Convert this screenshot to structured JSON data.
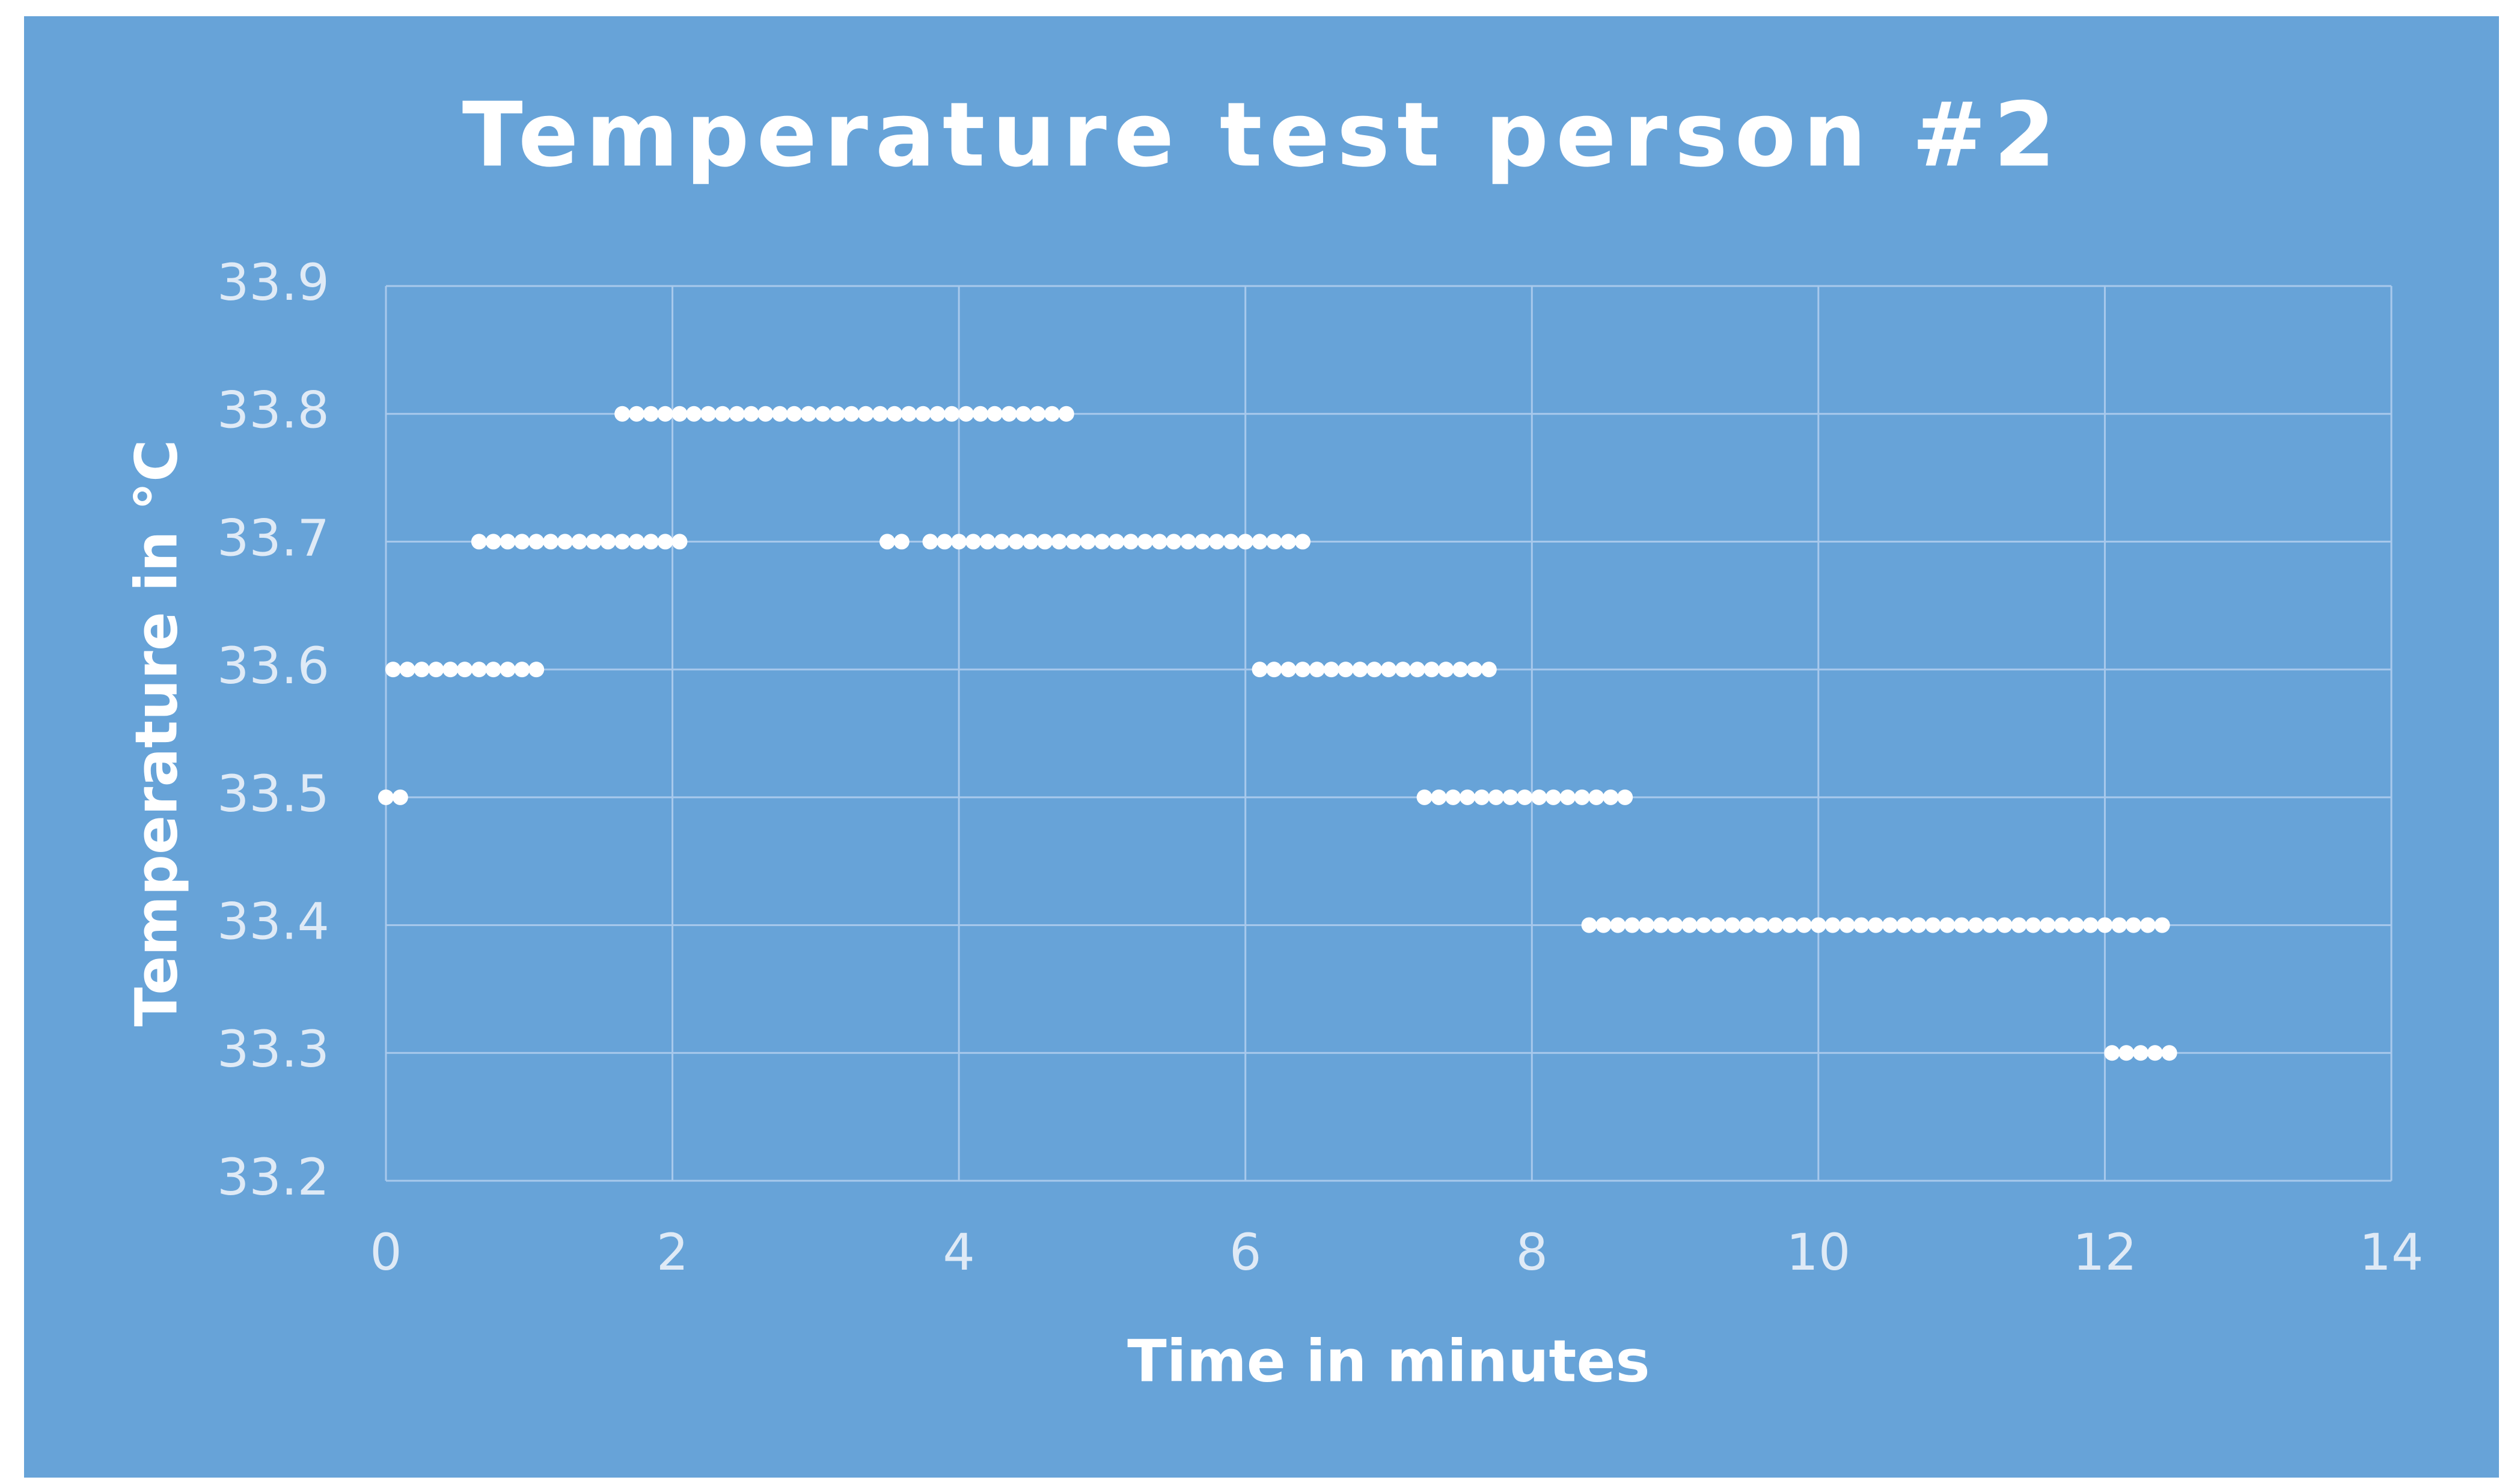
{
  "chart_data": {
    "type": "scatter",
    "title": "Temperature test person #2",
    "xlabel": "Time in minutes",
    "ylabel": "Temperature in °C",
    "color": "#ffffff",
    "grid": true,
    "xlim": [
      0,
      14
    ],
    "xticks": [
      0,
      2,
      4,
      6,
      8,
      10,
      12,
      14
    ],
    "ylim": [
      33.2,
      33.9
    ],
    "yticks": [
      33.2,
      33.3,
      33.4,
      33.5,
      33.6,
      33.7,
      33.8,
      33.9
    ],
    "x": [
      0,
      0.1,
      0.05,
      0.15,
      0.25,
      0.35,
      0.45,
      0.55,
      0.65,
      0.75,
      0.85,
      0.95,
      1.05,
      0.65,
      0.75,
      0.85,
      0.95,
      1.05,
      1.15,
      1.25,
      1.35,
      1.45,
      1.55,
      1.65,
      1.75,
      1.85,
      1.95,
      2.05,
      1.65,
      1.75,
      1.85,
      1.95,
      2.05,
      2.15,
      2.25,
      2.35,
      2.45,
      2.55,
      2.65,
      2.75,
      2.85,
      2.95,
      3.05,
      3.15,
      3.25,
      3.35,
      3.45,
      3.55,
      3.65,
      3.75,
      3.85,
      3.95,
      4.05,
      4.15,
      4.25,
      4.35,
      4.45,
      4.55,
      4.65,
      4.75,
      3.5,
      3.6,
      3.8,
      3.9,
      4.0,
      4.1,
      4.2,
      4.3,
      4.4,
      4.5,
      4.6,
      4.7,
      4.8,
      4.9,
      5.0,
      5.1,
      5.2,
      5.3,
      5.4,
      5.5,
      5.6,
      5.7,
      5.8,
      5.9,
      6.0,
      6.1,
      6.2,
      6.3,
      6.4,
      6.1,
      6.2,
      6.3,
      6.4,
      6.5,
      6.6,
      6.7,
      6.8,
      6.9,
      7.0,
      7.1,
      7.2,
      7.3,
      7.4,
      7.5,
      7.6,
      7.7,
      7.25,
      7.35,
      7.45,
      7.55,
      7.65,
      7.75,
      7.85,
      7.95,
      8.05,
      8.15,
      8.25,
      8.35,
      8.45,
      8.55,
      8.65,
      8.4,
      8.5,
      8.6,
      8.7,
      8.8,
      8.9,
      9.0,
      9.1,
      9.2,
      9.3,
      9.4,
      9.5,
      9.6,
      9.7,
      9.8,
      9.9,
      10.0,
      10.1,
      10.2,
      10.3,
      10.4,
      10.5,
      10.6,
      10.7,
      10.8,
      10.9,
      11.0,
      11.1,
      11.2,
      11.3,
      11.4,
      11.5,
      11.6,
      11.7,
      11.8,
      11.9,
      12.0,
      12.1,
      12.2,
      12.3,
      12.4,
      12.05,
      12.15,
      12.25,
      12.35,
      12.45
    ],
    "values": [
      33.5,
      33.5,
      33.6,
      33.6,
      33.6,
      33.6,
      33.6,
      33.6,
      33.6,
      33.6,
      33.6,
      33.6,
      33.6,
      33.7,
      33.7,
      33.7,
      33.7,
      33.7,
      33.7,
      33.7,
      33.7,
      33.7,
      33.7,
      33.7,
      33.7,
      33.7,
      33.7,
      33.7,
      33.8,
      33.8,
      33.8,
      33.8,
      33.8,
      33.8,
      33.8,
      33.8,
      33.8,
      33.8,
      33.8,
      33.8,
      33.8,
      33.8,
      33.8,
      33.8,
      33.8,
      33.8,
      33.8,
      33.8,
      33.8,
      33.8,
      33.8,
      33.8,
      33.8,
      33.8,
      33.8,
      33.8,
      33.8,
      33.8,
      33.8,
      33.8,
      33.7,
      33.7,
      33.7,
      33.7,
      33.7,
      33.7,
      33.7,
      33.7,
      33.7,
      33.7,
      33.7,
      33.7,
      33.7,
      33.7,
      33.7,
      33.7,
      33.7,
      33.7,
      33.7,
      33.7,
      33.7,
      33.7,
      33.7,
      33.7,
      33.7,
      33.7,
      33.7,
      33.7,
      33.7,
      33.6,
      33.6,
      33.6,
      33.6,
      33.6,
      33.6,
      33.6,
      33.6,
      33.6,
      33.6,
      33.6,
      33.6,
      33.6,
      33.6,
      33.6,
      33.6,
      33.6,
      33.5,
      33.5,
      33.5,
      33.5,
      33.5,
      33.5,
      33.5,
      33.5,
      33.5,
      33.5,
      33.5,
      33.5,
      33.5,
      33.5,
      33.5,
      33.4,
      33.4,
      33.4,
      33.4,
      33.4,
      33.4,
      33.4,
      33.4,
      33.4,
      33.4,
      33.4,
      33.4,
      33.4,
      33.4,
      33.4,
      33.4,
      33.4,
      33.4,
      33.4,
      33.4,
      33.4,
      33.4,
      33.4,
      33.4,
      33.4,
      33.4,
      33.4,
      33.4,
      33.4,
      33.4,
      33.4,
      33.4,
      33.4,
      33.4,
      33.4,
      33.4,
      33.4,
      33.4,
      33.4,
      33.4,
      33.4,
      33.3,
      33.3,
      33.3,
      33.3,
      33.3
    ]
  }
}
